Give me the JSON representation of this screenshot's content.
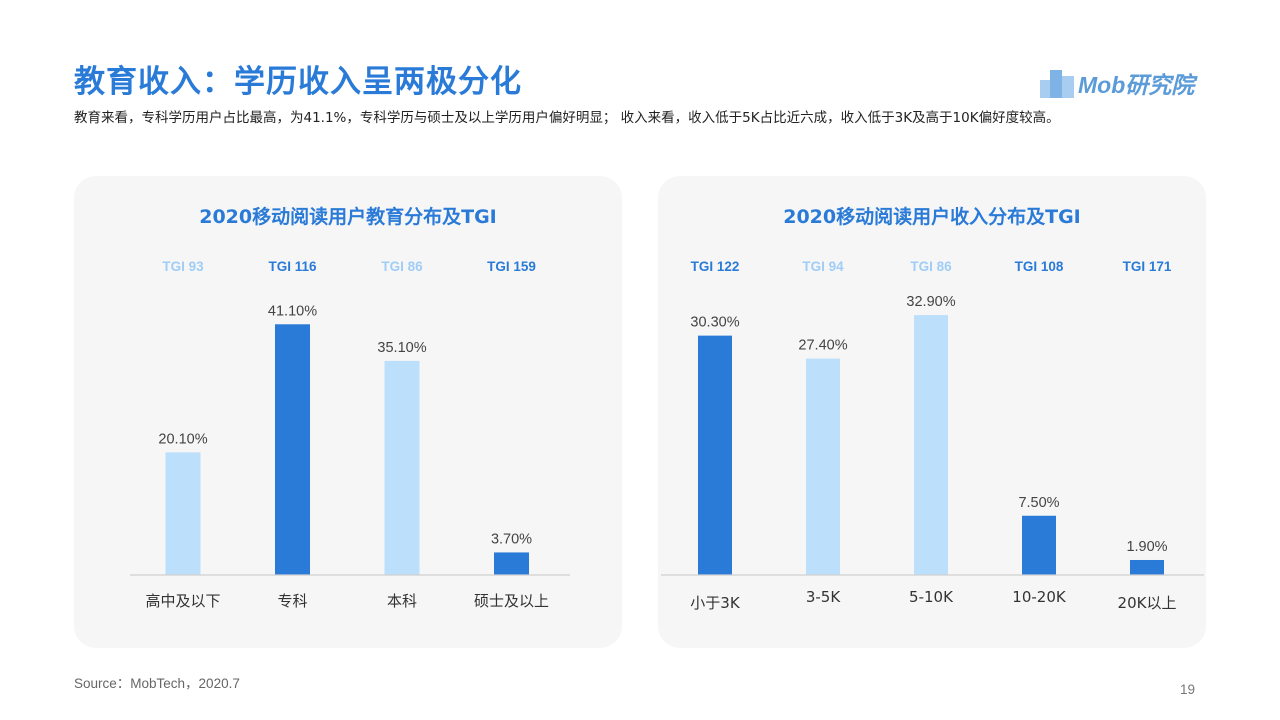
{
  "header": {
    "title": "教育收入：学历收入呈两极分化",
    "subtitle": "教育来看，专科学历用户占比最高，为41.1%，专科学历与硕士及以上学历用户偏好明显； 收入来看，收入低于5K占比近六成，收入低于3K及高于10K偏好度较高。",
    "logo_text": "Mob研究院"
  },
  "footer": {
    "source": "Source：MobTech，2020.7",
    "page_number": "19"
  },
  "colors": {
    "title_blue": "#2a7bd8",
    "dark_bar": "#2a7bd8",
    "light_bar": "#bcdffc",
    "light_tgi": "#9fcdf7",
    "card_bg": "#f6f6f6"
  },
  "chart_data": [
    {
      "type": "bar",
      "title": "2020移动阅读用户教育分布及TGI",
      "categories": [
        "高中及以下",
        "专科",
        "本科",
        "硕士及以上"
      ],
      "values": [
        20.1,
        41.1,
        35.1,
        3.7
      ],
      "value_labels": [
        "20.10%",
        "41.10%",
        "35.10%",
        "3.70%"
      ],
      "tgi_labels": [
        "TGI 93",
        "TGI 116",
        "TGI 86",
        "TGI 159"
      ],
      "highlight": [
        false,
        true,
        false,
        true
      ],
      "ylim": [
        0,
        45
      ],
      "grid": false,
      "legend": "none"
    },
    {
      "type": "bar",
      "title": "2020移动阅读用户收入分布及TGI",
      "categories": [
        "小于3K",
        "3-5K",
        "5-10K",
        "10-20K",
        "20K以上"
      ],
      "values": [
        30.3,
        27.4,
        32.9,
        7.5,
        1.9
      ],
      "value_labels": [
        "30.30%",
        "27.40%",
        "32.90%",
        "7.50%",
        "1.90%"
      ],
      "tgi_labels": [
        "TGI 122",
        "TGI 94",
        "TGI 86",
        "TGI 108",
        "TGI 171"
      ],
      "highlight": [
        true,
        false,
        false,
        true,
        true
      ],
      "ylim": [
        0,
        36
      ],
      "grid": false,
      "legend": "none"
    }
  ]
}
